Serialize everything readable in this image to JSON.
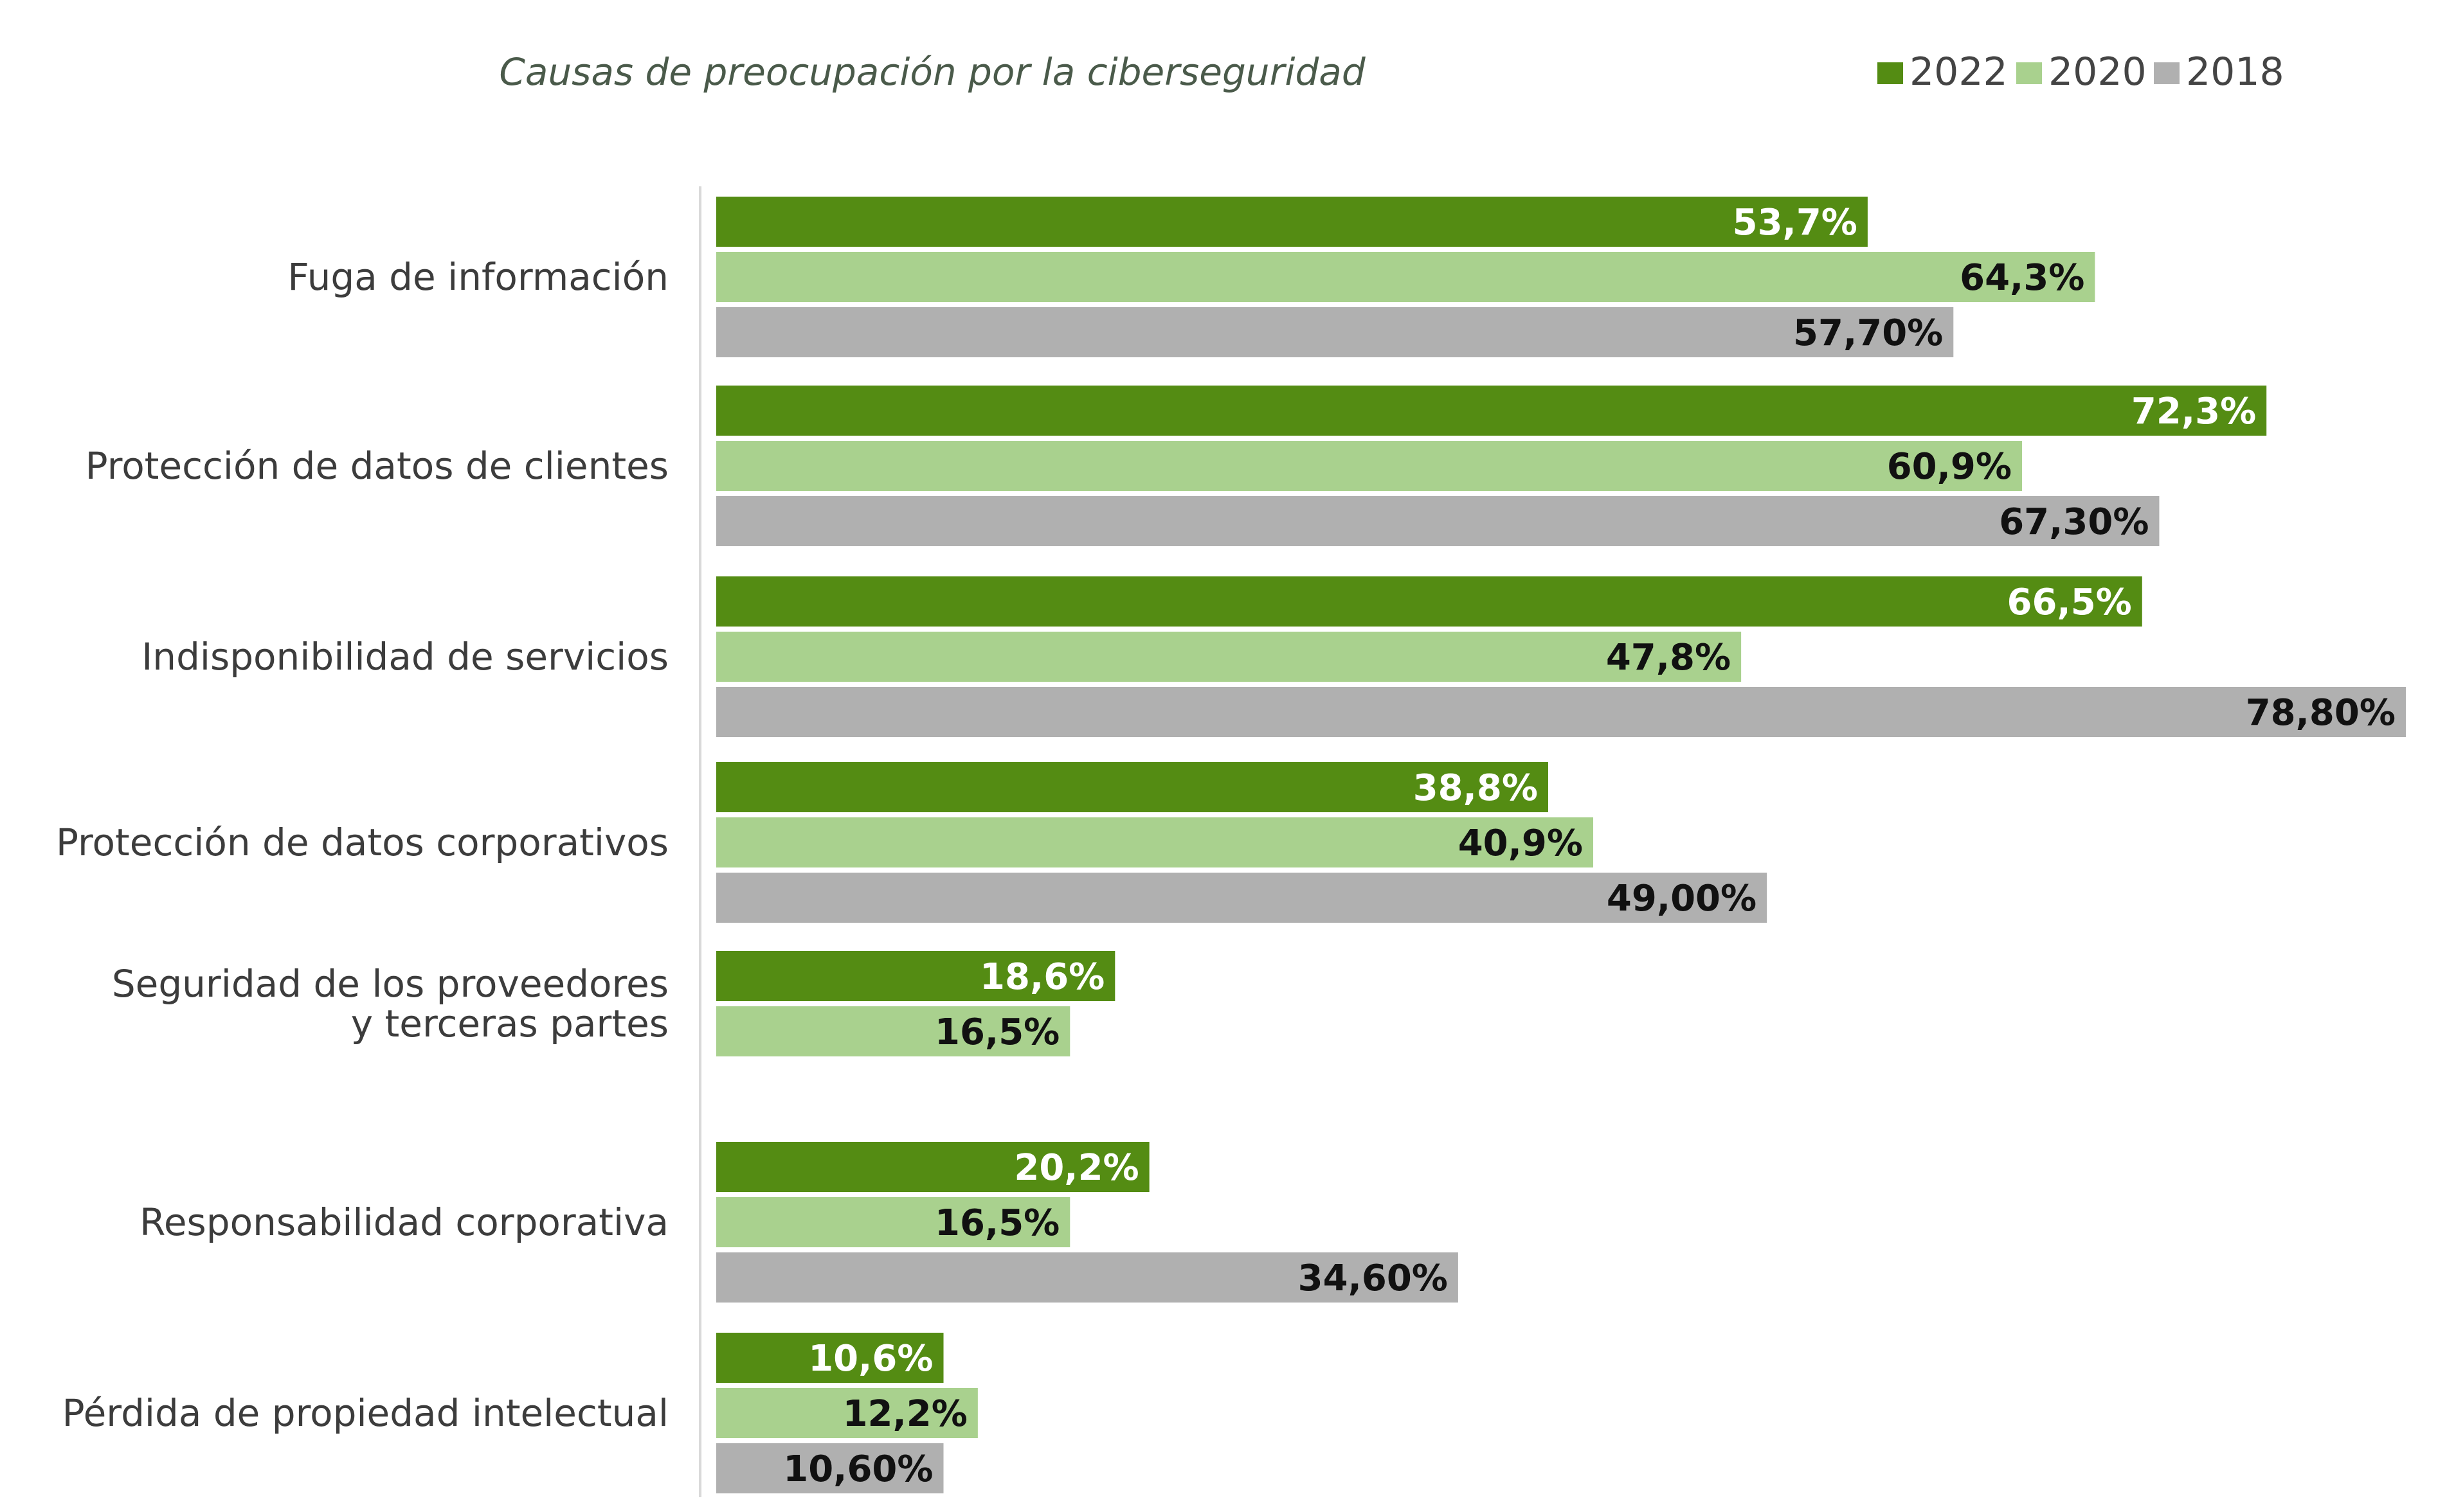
{
  "chart_data": {
    "type": "bar",
    "orientation": "horizontal",
    "title": "Causas de preocupación por la ciberseguridad",
    "legend_position": "top-right",
    "grid": false,
    "xlim": [
      0,
      80
    ],
    "categories": [
      "Fuga de información",
      "Protección de datos de clientes",
      "Indisponibilidad de servicios",
      "Protección de datos corporativos",
      "Seguridad de los proveedores\ny terceras partes",
      "Responsabilidad corporativa",
      "Pérdida de propiedad intelectual"
    ],
    "series": [
      {
        "name": "2022",
        "color": "#548c13",
        "label_color": "#ffffff",
        "values": [
          53.7,
          72.3,
          66.5,
          38.8,
          18.6,
          20.2,
          10.6
        ],
        "labels": [
          "53,7%",
          "72,3%",
          "66,5%",
          "38,8%",
          "18,6%",
          "20,2%",
          "10,6%"
        ]
      },
      {
        "name": "2020",
        "color": "#a9d18e",
        "label_color": "#111111",
        "values": [
          64.3,
          60.9,
          47.8,
          40.9,
          16.5,
          16.5,
          12.2
        ],
        "labels": [
          "64,3%",
          "60,9%",
          "47,8%",
          "40,9%",
          "16,5%",
          "16,5%",
          "12,2%"
        ]
      },
      {
        "name": "2018",
        "color": "#b0b0b0",
        "label_color": "#111111",
        "values": [
          57.7,
          67.3,
          78.8,
          49.0,
          null,
          34.6,
          10.6
        ],
        "labels": [
          "57,70%",
          "67,30%",
          "78,80%",
          "49,00%",
          "",
          "34,60%",
          "10,60%"
        ]
      }
    ],
    "colors": {
      "title": "#4a5a4a",
      "category_label": "#3c3c3c",
      "legend_text": "#444444",
      "axis_line": "#d9d9d9"
    }
  }
}
